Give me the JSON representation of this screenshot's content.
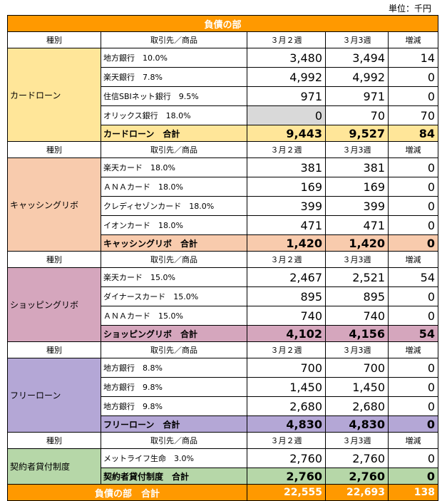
{
  "unit_label": "単位：千円",
  "title": "負債の部",
  "header": {
    "type": "種別",
    "partner": "取引先／商品",
    "w2": "３月２週",
    "w3": "３月3週",
    "diff": "増減"
  },
  "sections": [
    {
      "category": "カードローン",
      "color": "#ffe699",
      "rows": [
        {
          "partner": "地方銀行　10.0%",
          "w2": "3,480",
          "w3": "3,494",
          "diff": "14"
        },
        {
          "partner": "楽天銀行　7.8%",
          "w2": "4,992",
          "w3": "4,992",
          "diff": "0"
        },
        {
          "partner": "住信SBIネット銀行　9.5%",
          "w2": "971",
          "w3": "971",
          "diff": "0"
        },
        {
          "partner": "オリックス銀行　18.0%",
          "w2": "0",
          "w3": "70",
          "diff": "70"
        }
      ],
      "subtotal": {
        "label": "カードローン　合計",
        "w2": "9,443",
        "w3": "9,527",
        "diff": "84"
      }
    },
    {
      "category": "キャッシングリボ",
      "color": "#f8cbad",
      "rows": [
        {
          "partner": "楽天カード　18.0%",
          "w2": "381",
          "w3": "381",
          "diff": "0"
        },
        {
          "partner": "ＡＮＡカード　18.0%",
          "w2": "169",
          "w3": "169",
          "diff": "0"
        },
        {
          "partner": "クレディセゾンカード　18.0%",
          "w2": "399",
          "w3": "399",
          "diff": "0"
        },
        {
          "partner": "イオンカード　18.0%",
          "w2": "471",
          "w3": "471",
          "diff": "0"
        }
      ],
      "subtotal": {
        "label": "キャッシングリボ　合計",
        "w2": "1,420",
        "w3": "1,420",
        "diff": "0"
      }
    },
    {
      "category": "ショッピングリボ",
      "color": "#d5a6bd",
      "rows": [
        {
          "partner": "楽天カード　15.0%",
          "w2": "2,467",
          "w3": "2,521",
          "diff": "54"
        },
        {
          "partner": "ダイナースカード　15.0%",
          "w2": "895",
          "w3": "895",
          "diff": "0"
        },
        {
          "partner": "ＡＮＡカード　15.0%",
          "w2": "740",
          "w3": "740",
          "diff": "0"
        }
      ],
      "subtotal": {
        "label": "ショッピングリボ　合計",
        "w2": "4,102",
        "w3": "4,156",
        "diff": "54"
      }
    },
    {
      "category": "フリーローン",
      "color": "#b4a7d6",
      "rows": [
        {
          "partner": "地方銀行　8.8%",
          "w2": "700",
          "w3": "700",
          "diff": "0"
        },
        {
          "partner": "地方銀行　9.8%",
          "w2": "1,450",
          "w3": "1,450",
          "diff": "0"
        },
        {
          "partner": "地方銀行　9.8%",
          "w2": "2,680",
          "w3": "2,680",
          "diff": "0"
        }
      ],
      "subtotal": {
        "label": "フリーローン　合計",
        "w2": "4,830",
        "w3": "4,830",
        "diff": "0"
      }
    },
    {
      "category": "契約者貸付制度",
      "color": "#b6d7a8",
      "rows": [
        {
          "partner": "メットライフ生命　3.0%",
          "w2": "2,760",
          "w3": "2,760",
          "diff": "0"
        }
      ],
      "subtotal": {
        "label": "契約者貸付制度　合計",
        "w2": "2,760",
        "w3": "2,760",
        "diff": "0"
      }
    }
  ],
  "grand_total": {
    "label": "負債の部　合計",
    "w2": "22,555",
    "w3": "22,693",
    "diff": "138"
  }
}
